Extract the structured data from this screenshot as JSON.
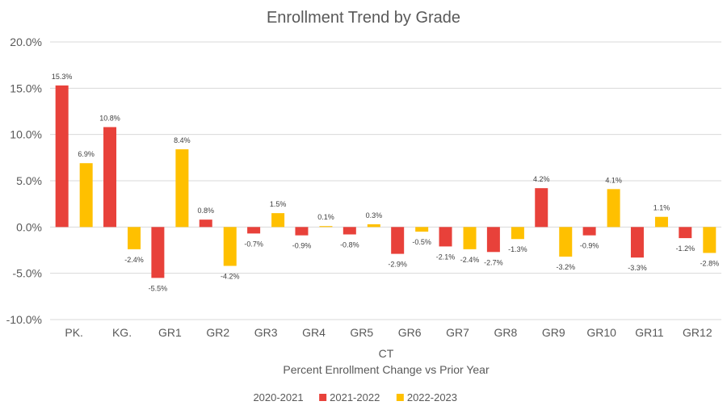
{
  "chart_data": {
    "type": "bar",
    "title": "Enrollment Trend by Grade",
    "xlabel_lines": [
      "CT",
      "Percent Enrollment Change vs Prior Year"
    ],
    "ylabel": "",
    "categories": [
      "PK.",
      "KG.",
      "GR1",
      "GR2",
      "GR3",
      "GR4",
      "GR5",
      "GR6",
      "GR7",
      "GR8",
      "GR9",
      "GR10",
      "GR11",
      "GR12"
    ],
    "ylim": [
      -10.0,
      20.0
    ],
    "yticks": [
      -10.0,
      -5.0,
      0.0,
      5.0,
      10.0,
      15.0,
      20.0
    ],
    "ytick_labels": [
      "-10.0%",
      "-5.0%",
      "0.0%",
      "5.0%",
      "10.0%",
      "15.0%",
      "20.0%"
    ],
    "grid": true,
    "legend_position": "bottom",
    "series": [
      {
        "name": "2020-2021",
        "color": "#4472C4",
        "values": [
          null,
          null,
          null,
          null,
          null,
          null,
          null,
          null,
          null,
          null,
          null,
          null,
          null,
          null
        ],
        "labels": []
      },
      {
        "name": "2021-2022",
        "color": "#E8413A",
        "values": [
          15.3,
          10.8,
          -5.5,
          0.8,
          -0.7,
          -0.9,
          -0.8,
          -2.9,
          -2.1,
          -2.7,
          4.2,
          -0.9,
          -3.3,
          -1.2
        ],
        "labels": [
          "15.3%",
          "10.8%",
          "-5.5%",
          "0.8%",
          "-0.7%",
          "-0.9%",
          "-0.8%",
          "-2.9%",
          "-2.1%",
          "-2.7%",
          "4.2%",
          "-0.9%",
          "-3.3%",
          "-1.2%"
        ]
      },
      {
        "name": "2022-2023",
        "color": "#FFC000",
        "values": [
          6.9,
          -2.4,
          8.4,
          -4.2,
          1.5,
          0.1,
          0.3,
          -0.5,
          -2.4,
          -1.3,
          -3.2,
          4.1,
          1.1,
          -2.8
        ],
        "labels": [
          "6.9%",
          "-2.4%",
          "8.4%",
          "-4.2%",
          "1.5%",
          "0.1%",
          "0.3%",
          "-0.5%",
          "-2.4%",
          "-1.3%",
          "-3.2%",
          "4.1%",
          "1.1%",
          "-2.8%"
        ]
      }
    ]
  }
}
